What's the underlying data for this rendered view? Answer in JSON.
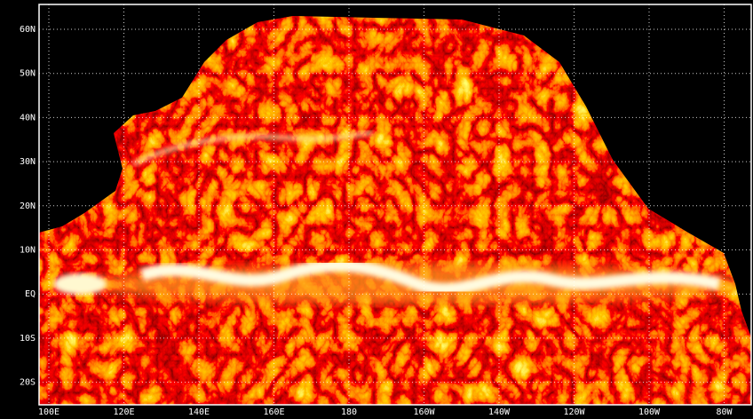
{
  "map": {
    "lon_labels": [
      "100E",
      "120E",
      "140E",
      "160E",
      "180",
      "160W",
      "140W",
      "120W",
      "100W",
      "80W"
    ],
    "lat_labels": [
      "60N",
      "50N",
      "40N",
      "30N",
      "20N",
      "10N",
      "EQ",
      "10S",
      "20S"
    ]
  }
}
